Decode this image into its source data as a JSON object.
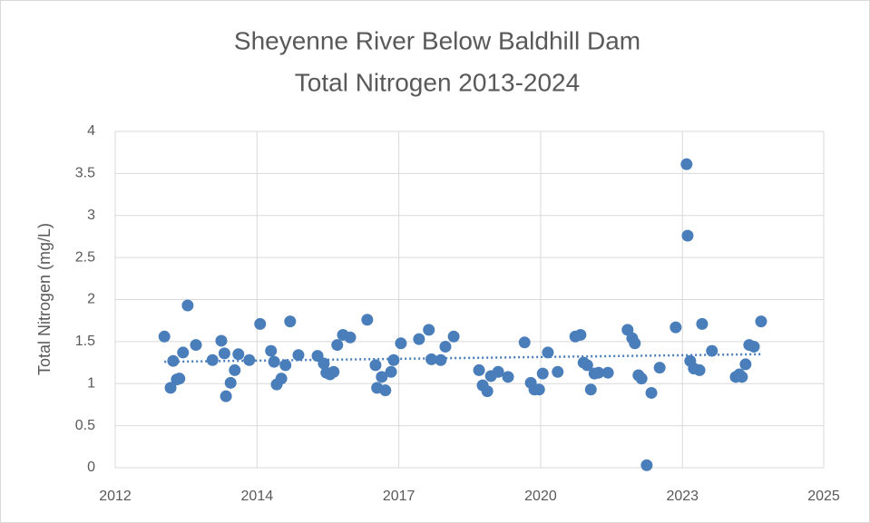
{
  "chart_data": {
    "type": "scatter",
    "title": [
      "Sheyenne River Below Baldhill Dam",
      "Total Nitrogen 2013-2024"
    ],
    "y_label": "Total Nitrogen (mg/L)",
    "color": "#4a7ebb",
    "grid": true,
    "xlim": [
      2012.11,
      2025.8
    ],
    "xticks": [
      {
        "value": 2012.11,
        "label": "2012"
      },
      {
        "value": 2014.85,
        "label": "2014"
      },
      {
        "value": 2017.59,
        "label": "2017"
      },
      {
        "value": 2020.33,
        "label": "2020"
      },
      {
        "value": 2023.07,
        "label": "2023"
      },
      {
        "value": 2025.8,
        "label": "2025"
      }
    ],
    "ylim": [
      0,
      4
    ],
    "yticks": [
      0,
      0.5,
      1,
      1.5,
      2,
      2.5,
      3,
      3.5,
      4
    ],
    "x": [
      2013.06,
      2013.18,
      2013.23,
      2013.3,
      2013.35,
      2013.42,
      2013.51,
      2013.67,
      2013.99,
      2014.16,
      2014.22,
      2014.25,
      2014.34,
      2014.42,
      2014.49,
      2014.7,
      2014.91,
      2015.12,
      2015.18,
      2015.23,
      2015.32,
      2015.4,
      2015.49,
      2015.65,
      2016.02,
      2016.14,
      2016.19,
      2016.26,
      2016.33,
      2016.4,
      2016.51,
      2016.65,
      2016.98,
      2017.14,
      2017.17,
      2017.26,
      2017.33,
      2017.44,
      2017.49,
      2017.63,
      2017.98,
      2018.17,
      2018.22,
      2018.4,
      2018.49,
      2018.65,
      2019.14,
      2019.21,
      2019.3,
      2019.37,
      2019.51,
      2019.7,
      2020.02,
      2020.14,
      2020.21,
      2020.3,
      2020.37,
      2020.47,
      2020.66,
      2021.0,
      2021.1,
      2021.16,
      2021.23,
      2021.3,
      2021.37,
      2021.45,
      2021.63,
      2022.01,
      2022.1,
      2022.15,
      2022.22,
      2022.28,
      2022.38,
      2022.47,
      2022.63,
      2022.94,
      2023.15,
      2023.17,
      2023.22,
      2023.29,
      2023.4,
      2023.45,
      2023.64,
      2024.1,
      2024.17,
      2024.22,
      2024.29,
      2024.36,
      2024.45,
      2024.59
    ],
    "values": [
      1.56,
      0.95,
      1.27,
      1.05,
      1.06,
      1.37,
      1.93,
      1.46,
      1.28,
      1.51,
      1.36,
      0.85,
      1.01,
      1.16,
      1.35,
      1.28,
      1.71,
      1.39,
      1.26,
      0.99,
      1.06,
      1.22,
      1.74,
      1.34,
      1.33,
      1.24,
      1.13,
      1.11,
      1.14,
      1.46,
      1.58,
      1.55,
      1.76,
      1.22,
      0.95,
      1.08,
      0.92,
      1.14,
      1.28,
      1.48,
      1.53,
      1.64,
      1.29,
      1.28,
      1.44,
      1.56,
      1.16,
      0.98,
      0.91,
      1.09,
      1.14,
      1.08,
      1.49,
      1.01,
      0.93,
      0.93,
      1.12,
      1.37,
      1.14,
      1.56,
      1.58,
      1.25,
      1.22,
      0.93,
      1.12,
      1.13,
      1.13,
      1.64,
      1.54,
      1.48,
      1.1,
      1.06,
      0.03,
      0.89,
      1.19,
      1.67,
      3.61,
      2.76,
      1.27,
      1.18,
      1.16,
      1.71,
      1.39,
      1.08,
      1.11,
      1.08,
      1.23,
      1.46,
      1.44,
      1.74
    ],
    "trendline": {
      "x": [
        2013.06,
        2024.59
      ],
      "values": [
        1.26,
        1.35
      ]
    }
  }
}
